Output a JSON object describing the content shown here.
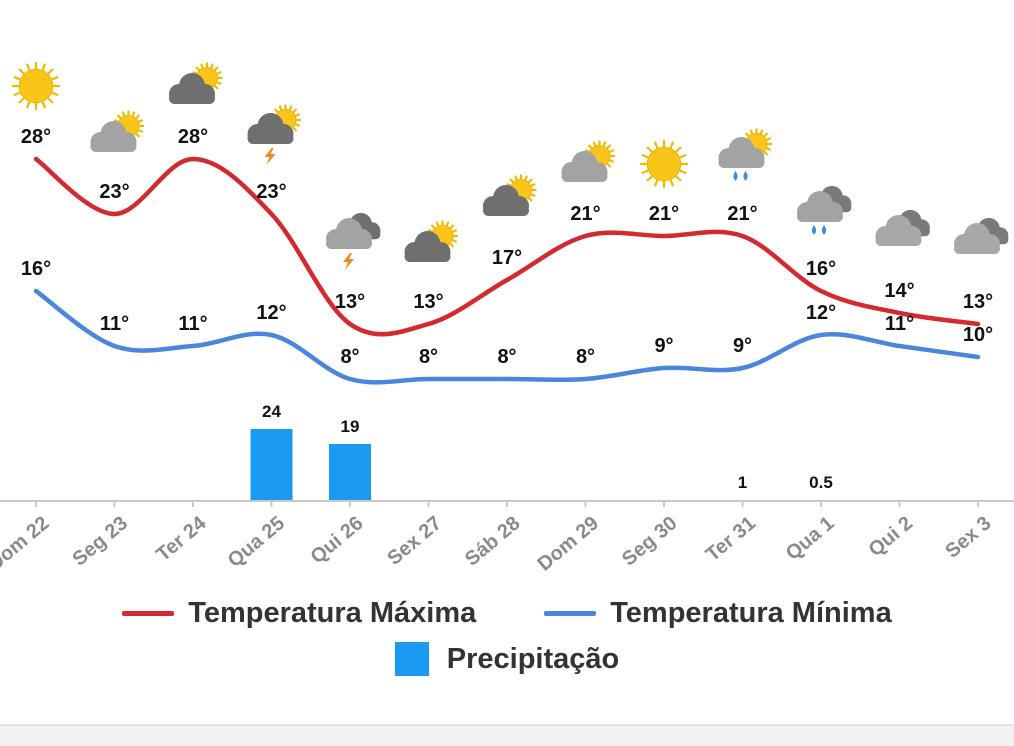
{
  "chart_data": {
    "type": "line",
    "categories": [
      "Dom 22",
      "Seg 23",
      "Ter 24",
      "Qua 25",
      "Qui 26",
      "Sex 27",
      "Sáb 28",
      "Dom 29",
      "Seg 30",
      "Ter 31",
      "Qua 1",
      "Qui 2",
      "Sex 3"
    ],
    "series": [
      {
        "name": "Temperatura Máxima",
        "type": "line",
        "color": "#d42a2f",
        "values": [
          28,
          23,
          28,
          23,
          13,
          13,
          17,
          21,
          21,
          21,
          16,
          14,
          13
        ],
        "labels": [
          "28°",
          "23°",
          "28°",
          "23°",
          "13°",
          "13°",
          "17°",
          "21°",
          "21°",
          "21°",
          "16°",
          "14°",
          "13°"
        ]
      },
      {
        "name": "Temperatura Mínima",
        "type": "line",
        "color": "#4a86db",
        "values": [
          16,
          11,
          11,
          12,
          8,
          8,
          8,
          8,
          9,
          9,
          12,
          11,
          10
        ],
        "labels": [
          "16°",
          "11°",
          "11°",
          "12°",
          "8°",
          "8°",
          "8°",
          "8°",
          "9°",
          "9°",
          "12°",
          "11°",
          "10°"
        ]
      },
      {
        "name": "Precipitação",
        "type": "bar",
        "color": "#1a9af0",
        "values": [
          0,
          0,
          0,
          24,
          19,
          0,
          0,
          0,
          0,
          1,
          0.5,
          0,
          0
        ],
        "labels": [
          "",
          "",
          "",
          "24",
          "19",
          "",
          "",
          "",
          "",
          "1",
          "0.5",
          "",
          ""
        ]
      }
    ],
    "icons": [
      "sun-icon",
      "partly-cloudy-icon",
      "partly-cloudy-dark-icon",
      "storm-partly-cloudy-icon",
      "storm-cloud-icon",
      "partly-cloudy-dark-icon",
      "partly-cloudy-dark-icon",
      "partly-cloudy-icon",
      "sun-icon",
      "rain-partly-cloudy-icon",
      "rain-cloud-icon",
      "cloudy-icon",
      "cloudy-icon"
    ],
    "title": "",
    "xlabel": "",
    "ylabel": "",
    "grid": false,
    "legend_position": "bottom"
  },
  "legend": {
    "max_label": "Temperatura Máxima",
    "min_label": "Temperatura Mínima",
    "precip_label": "Precipitação"
  },
  "colors": {
    "max": "#d42a2f",
    "min": "#4a86db",
    "precip": "#1a9af0",
    "axis": "#c9c9c9",
    "tick": "#8a8a8a"
  }
}
